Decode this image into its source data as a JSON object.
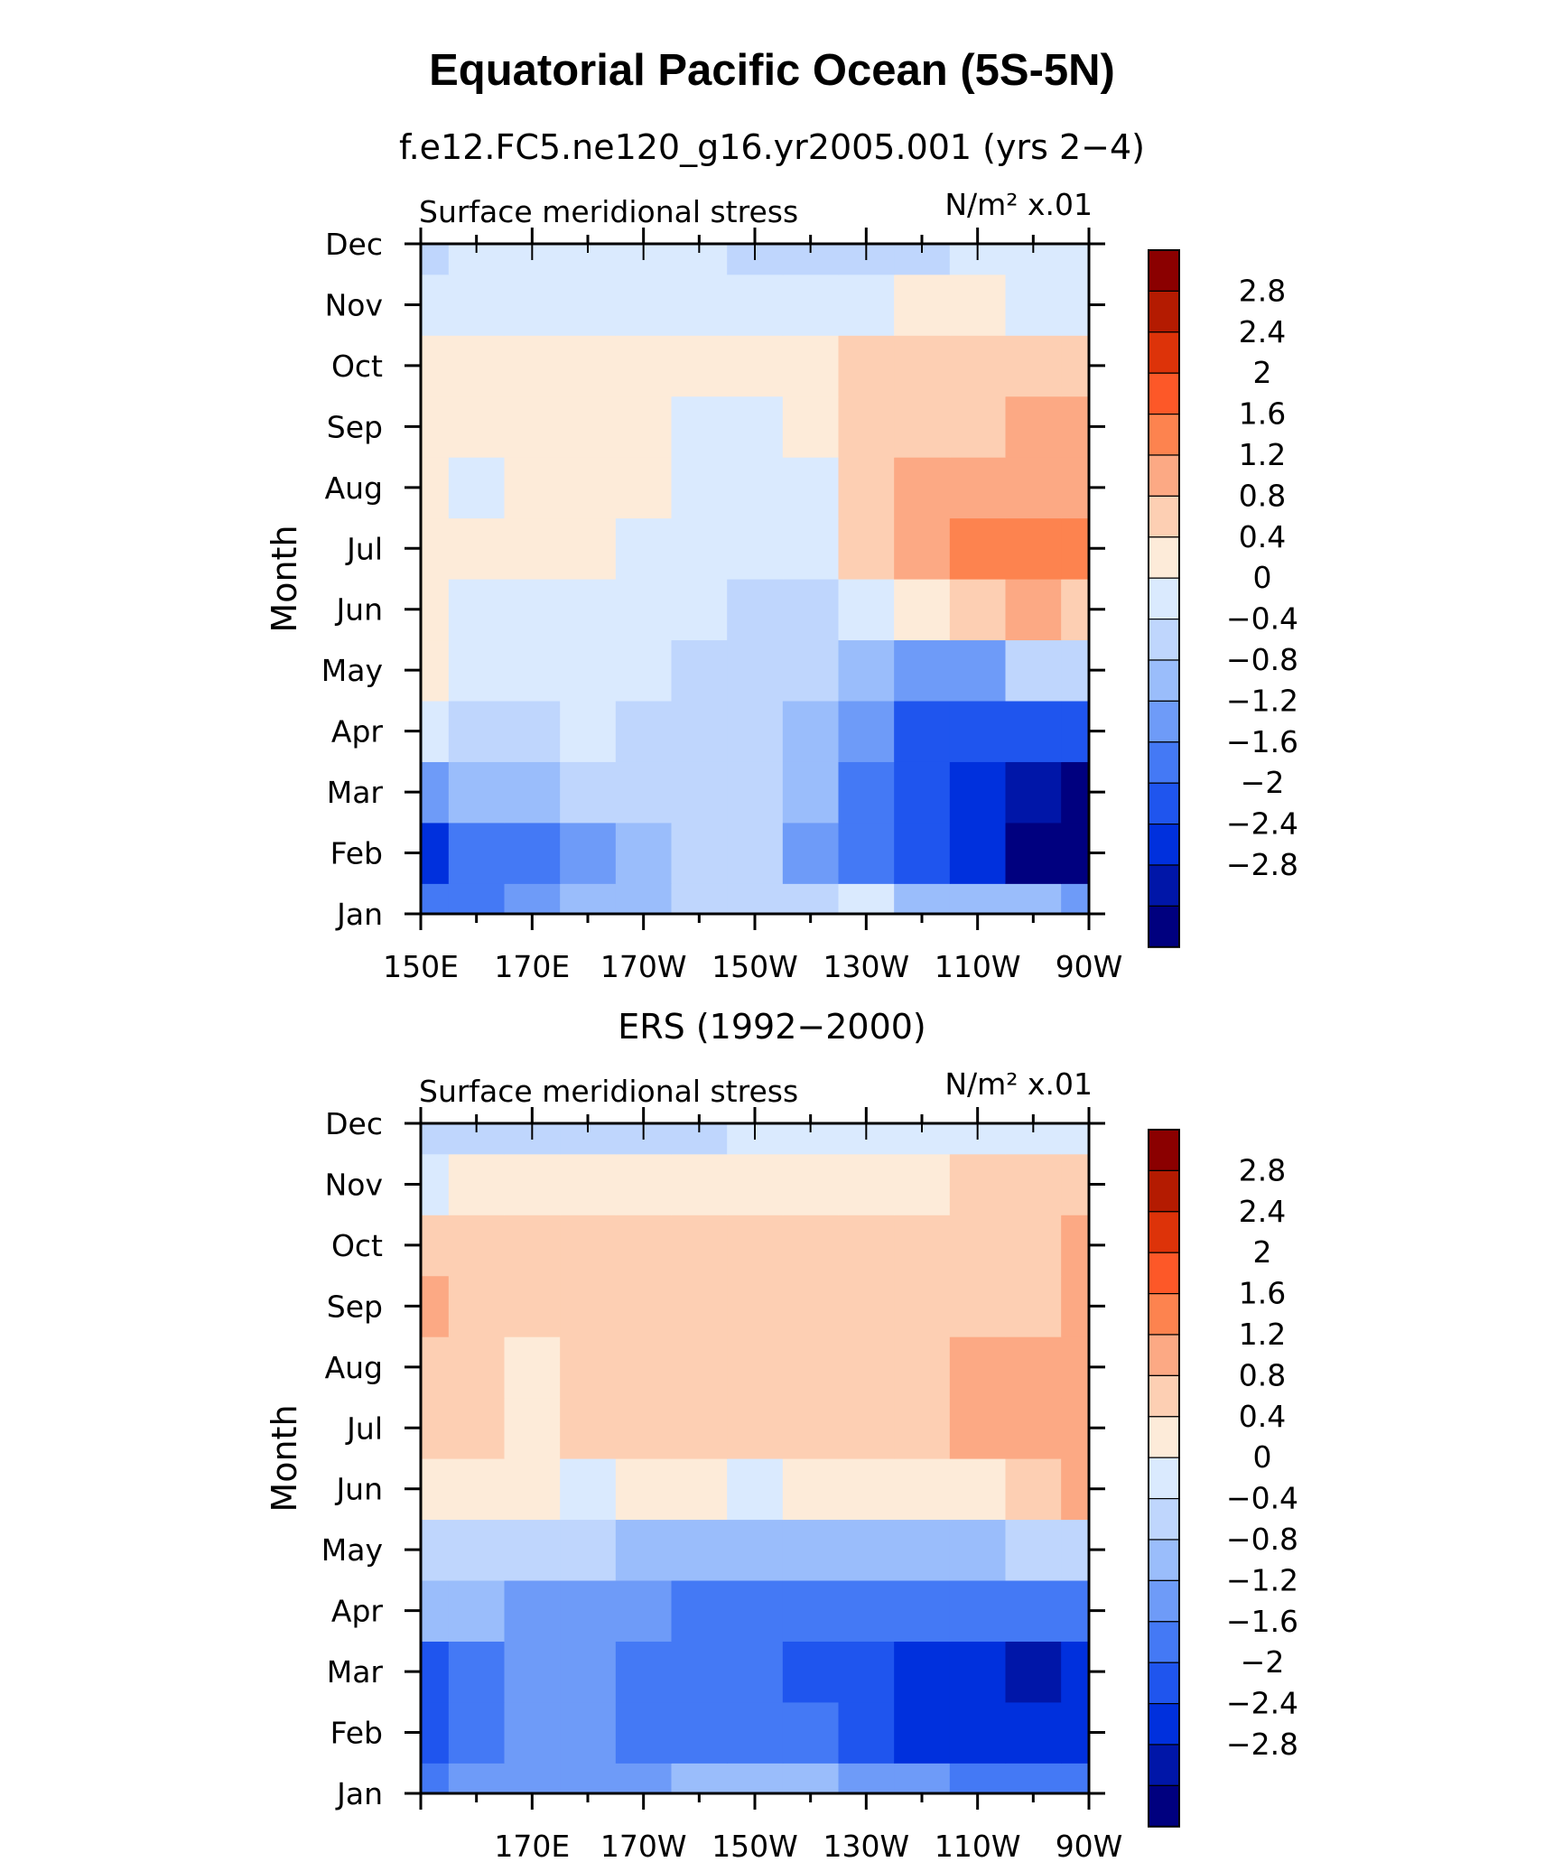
{
  "figure_title": "Equatorial Pacific Ocean (5S-5N)",
  "colors": [
    "#00007f",
    "#0016a8",
    "#0030dd",
    "#1f55ee",
    "#4479f5",
    "#6e9bf8",
    "#9abdfb",
    "#bfd6fd",
    "#daeafe",
    "#fdebd9",
    "#fdcfb3",
    "#fca984",
    "#fd834f",
    "#fd5828",
    "#dd3309",
    "#b41b01",
    "#8b0000"
  ],
  "chart_data": [
    {
      "type": "heatmap",
      "title": "f.e12.FC5.ne120_g16.yr2005.001 (yrs 2−4)",
      "left_label": "Surface meridional stress",
      "units_label": "N/m² x.01",
      "ylabel": "Month",
      "y_ticks": [
        "Jan",
        "Feb",
        "Mar",
        "Apr",
        "May",
        "Jun",
        "Jul",
        "Aug",
        "Sep",
        "Oct",
        "Nov",
        "Dec"
      ],
      "x_ticks": [
        "150E",
        "170E",
        "170W",
        "150W",
        "130W",
        "110W",
        "90W"
      ],
      "xlim": [
        150,
        270
      ],
      "ylim": [
        1,
        12
      ],
      "colorbar_levels": [
        "2.8",
        "2.4",
        "2",
        "1.6",
        "1.2",
        "0.8",
        "0.4",
        "0",
        "−0.4",
        "−0.8",
        "−1.2",
        "−1.6",
        "−2",
        "−2.4",
        "−2.8"
      ],
      "x_lon": [
        150,
        160,
        170,
        180,
        190,
        200,
        210,
        220,
        230,
        240,
        250,
        260,
        270
      ],
      "z": [
        [
          -1.3,
          -1.3,
          -1.0,
          -0.8,
          -0.5,
          -0.3,
          -0.2,
          -0.2,
          0.1,
          -0.5,
          -0.6,
          -0.8,
          -0.9
        ],
        [
          -2.2,
          -1.6,
          -1.5,
          -1.2,
          -0.5,
          -0.3,
          -0.3,
          -0.9,
          -1.3,
          -1.9,
          -2.4,
          -2.9,
          -3.0
        ],
        [
          -1.1,
          -0.8,
          -0.6,
          -0.4,
          -0.3,
          -0.2,
          -0.3,
          -0.6,
          -1.3,
          -2.0,
          -2.3,
          -2.7,
          -2.9
        ],
        [
          0.1,
          -0.2,
          -0.2,
          0.05,
          -0.2,
          -0.2,
          -0.3,
          -0.7,
          -1.1,
          -1.7,
          -2.0,
          -2.0,
          -1.9
        ],
        [
          0.4,
          0.3,
          0.2,
          0.2,
          0.1,
          -0.1,
          -0.2,
          -0.4,
          -0.7,
          -0.9,
          -1.0,
          -0.4,
          -0.1
        ],
        [
          0.5,
          0.2,
          0.2,
          0.2,
          0.1,
          0.05,
          -0.1,
          -0.3,
          0.3,
          0.6,
          0.9,
          1.2,
          0.9
        ],
        [
          0.6,
          0.5,
          0.5,
          0.5,
          0.3,
          0.3,
          0.2,
          0.3,
          0.8,
          1.3,
          1.6,
          1.8,
          1.8
        ],
        [
          0.5,
          0.3,
          0.4,
          0.4,
          0.5,
          0.3,
          0.3,
          0.3,
          0.9,
          1.3,
          1.4,
          1.4,
          1.5
        ],
        [
          0.6,
          0.5,
          0.5,
          0.5,
          0.6,
          0.2,
          0.2,
          0.4,
          0.9,
          1.0,
          1.0,
          1.2,
          1.3
        ],
        [
          0.6,
          0.5,
          0.6,
          0.6,
          0.5,
          0.5,
          0.5,
          0.5,
          0.9,
          1.1,
          0.9,
          0.9,
          1.1
        ],
        [
          0.1,
          0.2,
          0.2,
          0.2,
          0.2,
          0.2,
          0.1,
          0.2,
          0.3,
          0.4,
          0.4,
          0.3,
          0.3
        ],
        [
          -0.1,
          0.1,
          0.2,
          0.1,
          0.1,
          0.1,
          -0.1,
          -0.1,
          -0.2,
          -0.1,
          0.1,
          0.2,
          0.2
        ]
      ]
    },
    {
      "type": "heatmap",
      "title": "ERS (1992−2000)",
      "left_label": "Surface meridional stress",
      "units_label": "N/m² x.01",
      "ylabel": "Month",
      "y_ticks": [
        "Jan",
        "Feb",
        "Mar",
        "Apr",
        "May",
        "Jun",
        "Jul",
        "Aug",
        "Sep",
        "Oct",
        "Nov",
        "Dec"
      ],
      "x_ticks": [
        "170E",
        "170W",
        "150W",
        "130W",
        "110W",
        "90W"
      ],
      "xlim": [
        150,
        270
      ],
      "ylim": [
        1,
        12
      ],
      "colorbar_levels": [
        "2.8",
        "2.4",
        "2",
        "1.6",
        "1.2",
        "0.8",
        "0.4",
        "0",
        "−0.4",
        "−0.8",
        "−1.2",
        "−1.6",
        "−2",
        "−2.4",
        "−2.8"
      ],
      "x_lon": [
        150,
        160,
        170,
        180,
        190,
        200,
        210,
        220,
        230,
        240,
        250,
        260,
        270
      ],
      "z": [
        [
          -1.4,
          -1.2,
          -0.9,
          -1.0,
          -0.9,
          -0.8,
          -0.7,
          -0.6,
          -0.9,
          -1.1,
          -1.3,
          -1.5,
          -1.6
        ],
        [
          -1.7,
          -1.5,
          -1.1,
          -1.1,
          -1.3,
          -1.4,
          -1.5,
          -1.6,
          -1.8,
          -2.1,
          -2.3,
          -2.4,
          -2.3
        ],
        [
          -1.8,
          -1.5,
          -0.9,
          -1.2,
          -1.3,
          -1.4,
          -1.5,
          -1.7,
          -2.0,
          -2.2,
          -2.4,
          -2.6,
          -2.4
        ],
        [
          -0.8,
          -0.8,
          -0.9,
          -1.0,
          -1.1,
          -1.3,
          -1.6,
          -1.4,
          -1.6,
          -1.6,
          -1.5,
          -1.6,
          -1.5
        ],
        [
          -0.2,
          -0.3,
          -0.4,
          -0.4,
          -0.5,
          -0.5,
          -0.6,
          -0.5,
          -0.6,
          -0.5,
          -0.5,
          -0.4,
          -0.3
        ],
        [
          0.6,
          0.5,
          0.4,
          0.3,
          0.5,
          0.4,
          0.3,
          0.6,
          0.4,
          0.5,
          0.6,
          0.9,
          1.4
        ],
        [
          1.1,
          0.9,
          0.7,
          0.8,
          0.9,
          0.9,
          0.9,
          1.0,
          0.9,
          0.9,
          1.2,
          1.4,
          1.5
        ],
        [
          1.0,
          0.8,
          0.7,
          0.9,
          1.0,
          1.0,
          0.8,
          1.0,
          1.0,
          1.0,
          1.2,
          1.3,
          1.2
        ],
        [
          1.4,
          1.1,
          0.9,
          0.9,
          1.0,
          1.1,
          0.9,
          0.9,
          1.0,
          1.0,
          0.9,
          1.0,
          1.2
        ],
        [
          0.9,
          0.9,
          0.8,
          0.8,
          0.8,
          0.9,
          0.9,
          0.9,
          0.9,
          0.8,
          0.8,
          0.9,
          1.2
        ],
        [
          0.3,
          0.4,
          0.6,
          0.5,
          0.5,
          0.5,
          0.6,
          0.5,
          0.6,
          0.4,
          0.9,
          0.9,
          0.9
        ],
        [
          -0.2,
          -0.1,
          -0.2,
          -0.3,
          -0.2,
          -0.1,
          0.1,
          0.1,
          0.1,
          0.2,
          0.3,
          0.2,
          0.1
        ]
      ]
    }
  ]
}
